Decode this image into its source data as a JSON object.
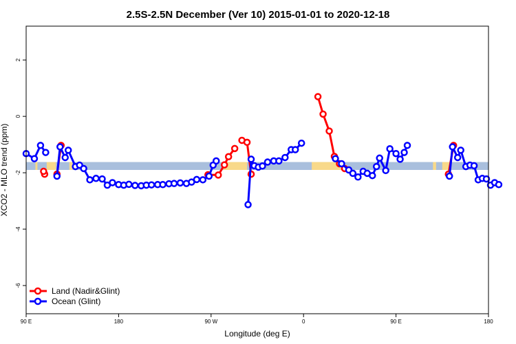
{
  "chart_data": {
    "type": "line",
    "title": "2.5S-2.5N December (Ver 10)   2015-01-01 to 2020-12-18",
    "xlabel": "Longitude (deg E)",
    "ylabel": "XCO2 - MLO trend (ppm)",
    "xlim": [
      90,
      540
    ],
    "ylim": [
      -7.0,
      3.2
    ],
    "x_ticks": [
      {
        "value": 90,
        "label": "90 E"
      },
      {
        "value": 180,
        "label": "180"
      },
      {
        "value": 270,
        "label": "90 W"
      },
      {
        "value": 360,
        "label": "0"
      },
      {
        "value": 450,
        "label": "90 E"
      },
      {
        "value": 540,
        "label": "180"
      }
    ],
    "y_ticks": [
      {
        "value": 2,
        "label": "2"
      },
      {
        "value": 0,
        "label": "0"
      },
      {
        "value": -2,
        "label": "-2"
      },
      {
        "value": -4,
        "label": "-4"
      },
      {
        "value": -6,
        "label": "-6"
      }
    ],
    "reference_band": {
      "ymin": -1.9,
      "ymax": -1.62,
      "color": "#a9bfdd"
    },
    "land_mask_segments": [
      [
        99,
        101
      ],
      [
        110,
        119
      ],
      [
        132,
        135
      ],
      [
        282,
        305
      ],
      [
        368,
        400
      ],
      [
        486,
        489
      ],
      [
        495,
        502
      ]
    ],
    "land_mask_color": "#f8d98a",
    "legend": {
      "position": "bottom-left",
      "entries": [
        {
          "label": "Land (Nadir&Glint)",
          "color": "#ff0000"
        },
        {
          "label": "Ocean (Glint)",
          "color": "#0000ff"
        }
      ]
    },
    "series": [
      {
        "name": "Land (Nadir&Glint)",
        "color": "#ff0000",
        "segments": [
          [
            [
              120,
              -2.05
            ],
            [
              124,
              -1.03
            ]
          ],
          [
            [
              267,
              -2.07
            ],
            [
              277,
              -2.08
            ],
            [
              283,
              -1.72
            ],
            [
              287,
              -1.43
            ],
            [
              293,
              -1.14
            ]
          ],
          [
            [
              300,
              -0.85
            ],
            [
              305,
              -0.92
            ],
            [
              309,
              -2.05
            ]
          ],
          [
            [
              108,
              -2.05
            ],
            [
              107,
              -1.95
            ]
          ],
          [
            [
              374,
              0.7
            ],
            [
              379,
              0.08
            ],
            [
              385,
              -0.52
            ],
            [
              390,
              -1.42
            ],
            [
              395,
              -1.68
            ],
            [
              400,
              -1.85
            ]
          ],
          [
            [
              501,
              -2.05
            ],
            [
              506,
              -1.03
            ]
          ]
        ]
      },
      {
        "name": "Ocean (Glint)",
        "color": "#0000ff",
        "segments": [
          [
            [
              90,
              -1.32
            ],
            [
              98,
              -1.5
            ],
            [
              104,
              -1.03
            ],
            [
              109,
              -1.28
            ]
          ],
          [
            [
              120,
              -2.12
            ],
            [
              123,
              -1.08
            ],
            [
              128,
              -1.46
            ],
            [
              131,
              -1.2
            ],
            [
              138,
              -1.78
            ],
            [
              142,
              -1.73
            ],
            [
              146,
              -1.85
            ],
            [
              152,
              -2.25
            ],
            [
              158,
              -2.2
            ],
            [
              164,
              -2.22
            ],
            [
              169,
              -2.44
            ],
            [
              174,
              -2.35
            ],
            [
              180,
              -2.42
            ],
            [
              185,
              -2.44
            ],
            [
              190,
              -2.41
            ],
            [
              196,
              -2.45
            ],
            [
              202,
              -2.46
            ],
            [
              207,
              -2.44
            ],
            [
              212,
              -2.43
            ],
            [
              218,
              -2.42
            ],
            [
              223,
              -2.42
            ],
            [
              229,
              -2.39
            ],
            [
              234,
              -2.38
            ],
            [
              240,
              -2.36
            ],
            [
              246,
              -2.38
            ],
            [
              251,
              -2.33
            ],
            [
              256,
              -2.24
            ],
            [
              262,
              -2.25
            ],
            [
              268,
              -2.12
            ],
            [
              272,
              -1.73
            ],
            [
              275,
              -1.58
            ]
          ],
          [
            [
              306,
              -3.13
            ],
            [
              309,
              -1.52
            ],
            [
              312,
              -1.75
            ],
            [
              316,
              -1.8
            ],
            [
              320,
              -1.76
            ],
            [
              325,
              -1.62
            ],
            [
              331,
              -1.58
            ],
            [
              336,
              -1.58
            ],
            [
              342,
              -1.46
            ],
            [
              348,
              -1.18
            ],
            [
              352,
              -1.18
            ],
            [
              358,
              -0.95
            ]
          ],
          [
            [
              391,
              -1.5
            ],
            [
              397,
              -1.68
            ],
            [
              404,
              -1.9
            ],
            [
              408,
              -2.02
            ],
            [
              413,
              -2.15
            ],
            [
              418,
              -1.95
            ],
            [
              422,
              -2.02
            ],
            [
              427,
              -2.1
            ],
            [
              431,
              -1.78
            ],
            [
              434,
              -1.48
            ],
            [
              440,
              -1.92
            ],
            [
              444,
              -1.15
            ],
            [
              450,
              -1.32
            ],
            [
              454,
              -1.52
            ],
            [
              458,
              -1.28
            ],
            [
              461,
              -1.03
            ]
          ],
          [
            [
              502,
              -2.12
            ],
            [
              505,
              -1.08
            ],
            [
              510,
              -1.46
            ],
            [
              513,
              -1.2
            ],
            [
              518,
              -1.78
            ],
            [
              522,
              -1.73
            ],
            [
              526,
              -1.75
            ],
            [
              530,
              -2.25
            ],
            [
              534,
              -2.2
            ],
            [
              538,
              -2.22
            ],
            [
              542,
              -2.44
            ],
            [
              546,
              -2.35
            ],
            [
              550,
              -2.42
            ]
          ]
        ]
      }
    ]
  }
}
